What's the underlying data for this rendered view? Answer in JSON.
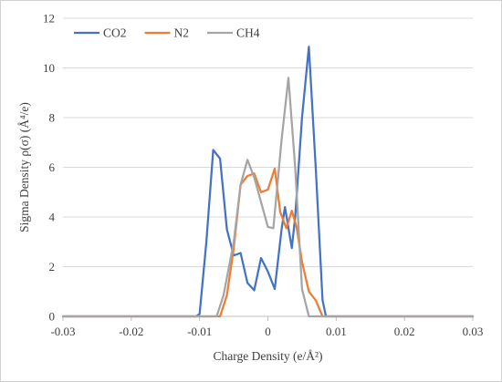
{
  "chart_data": {
    "type": "line",
    "xlabel": "Charge Density (e/Å²)",
    "ylabel": "Sigma Density ρ(σ) (Å⁴/e)",
    "xlim": [
      -0.03,
      0.03
    ],
    "ylim": [
      0,
      12
    ],
    "x_ticks": [
      "-0.03",
      "-0.02",
      "-0.01",
      "0",
      "0.01",
      "0.02",
      "0.03"
    ],
    "y_ticks": [
      "0",
      "2",
      "4",
      "6",
      "8",
      "10",
      "12"
    ],
    "grid": "horizontal",
    "legend_position": "top-left",
    "series": [
      {
        "name": "CO2",
        "color": "#4472c4",
        "points": [
          [
            -0.03,
            0
          ],
          [
            -0.0105,
            0
          ],
          [
            -0.01,
            0.1
          ],
          [
            -0.009,
            3.0
          ],
          [
            -0.008,
            6.7
          ],
          [
            -0.007,
            6.35
          ],
          [
            -0.006,
            3.5
          ],
          [
            -0.005,
            2.45
          ],
          [
            -0.004,
            2.55
          ],
          [
            -0.003,
            1.35
          ],
          [
            -0.002,
            1.05
          ],
          [
            -0.001,
            2.35
          ],
          [
            0.0,
            1.8
          ],
          [
            0.001,
            1.1
          ],
          [
            0.002,
            3.5
          ],
          [
            0.0025,
            4.4
          ],
          [
            0.0035,
            2.75
          ],
          [
            0.004,
            4.0
          ],
          [
            0.005,
            8.0
          ],
          [
            0.006,
            10.85
          ],
          [
            0.007,
            6.0
          ],
          [
            0.008,
            0.65
          ],
          [
            0.0085,
            0
          ],
          [
            0.03,
            0
          ]
        ]
      },
      {
        "name": "N2",
        "color": "#ed7d31",
        "points": [
          [
            -0.03,
            0
          ],
          [
            -0.007,
            0
          ],
          [
            -0.006,
            0.85
          ],
          [
            -0.005,
            2.75
          ],
          [
            -0.004,
            5.3
          ],
          [
            -0.003,
            5.65
          ],
          [
            -0.002,
            5.75
          ],
          [
            -0.001,
            5.0
          ],
          [
            0.0,
            5.1
          ],
          [
            0.001,
            5.95
          ],
          [
            0.0018,
            4.2
          ],
          [
            0.0027,
            3.55
          ],
          [
            0.0035,
            4.25
          ],
          [
            0.0042,
            3.6
          ],
          [
            0.005,
            2.2
          ],
          [
            0.006,
            1.0
          ],
          [
            0.007,
            0.65
          ],
          [
            0.008,
            0
          ],
          [
            0.03,
            0
          ]
        ]
      },
      {
        "name": "CH4",
        "color": "#a5a5a5",
        "points": [
          [
            -0.03,
            0
          ],
          [
            -0.0075,
            0
          ],
          [
            -0.0065,
            0.85
          ],
          [
            -0.005,
            3.0
          ],
          [
            -0.004,
            5.3
          ],
          [
            -0.003,
            6.3
          ],
          [
            -0.002,
            5.6
          ],
          [
            -0.001,
            4.6
          ],
          [
            0.0,
            3.6
          ],
          [
            0.0008,
            3.55
          ],
          [
            0.002,
            7.1
          ],
          [
            0.003,
            9.6
          ],
          [
            0.004,
            6.0
          ],
          [
            0.005,
            1.1
          ],
          [
            0.006,
            0
          ],
          [
            0.03,
            0
          ]
        ]
      }
    ]
  }
}
